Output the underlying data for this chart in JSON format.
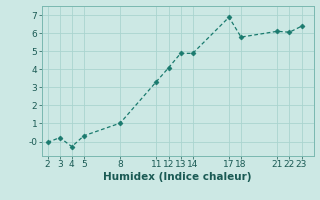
{
  "x": [
    2,
    3,
    4,
    5,
    8,
    11,
    12,
    13,
    14,
    17,
    18,
    21,
    22,
    23
  ],
  "y": [
    -0.05,
    0.22,
    -0.28,
    0.32,
    1.02,
    3.32,
    4.08,
    4.88,
    4.88,
    6.88,
    5.78,
    6.1,
    6.05,
    6.38
  ],
  "line_color": "#1a7a6e",
  "marker": "D",
  "marker_size": 2.5,
  "line_width": 0.9,
  "bg_color": "#cce8e4",
  "grid_color": "#aad4cf",
  "xlabel": "Humidex (Indice chaleur)",
  "xlim": [
    1.5,
    24
  ],
  "ylim": [
    -0.8,
    7.5
  ],
  "yticks": [
    0,
    1,
    2,
    3,
    4,
    5,
    6,
    7
  ],
  "ytick_labels": [
    "-0",
    "1",
    "2",
    "3",
    "4",
    "5",
    "6",
    "7"
  ],
  "xticks": [
    2,
    3,
    4,
    5,
    8,
    11,
    12,
    13,
    14,
    17,
    18,
    21,
    22,
    23
  ],
  "font_size": 6.5,
  "label_font_size": 7.5,
  "tick_color": "#1a5a54",
  "spine_color": "#7ab8b0"
}
